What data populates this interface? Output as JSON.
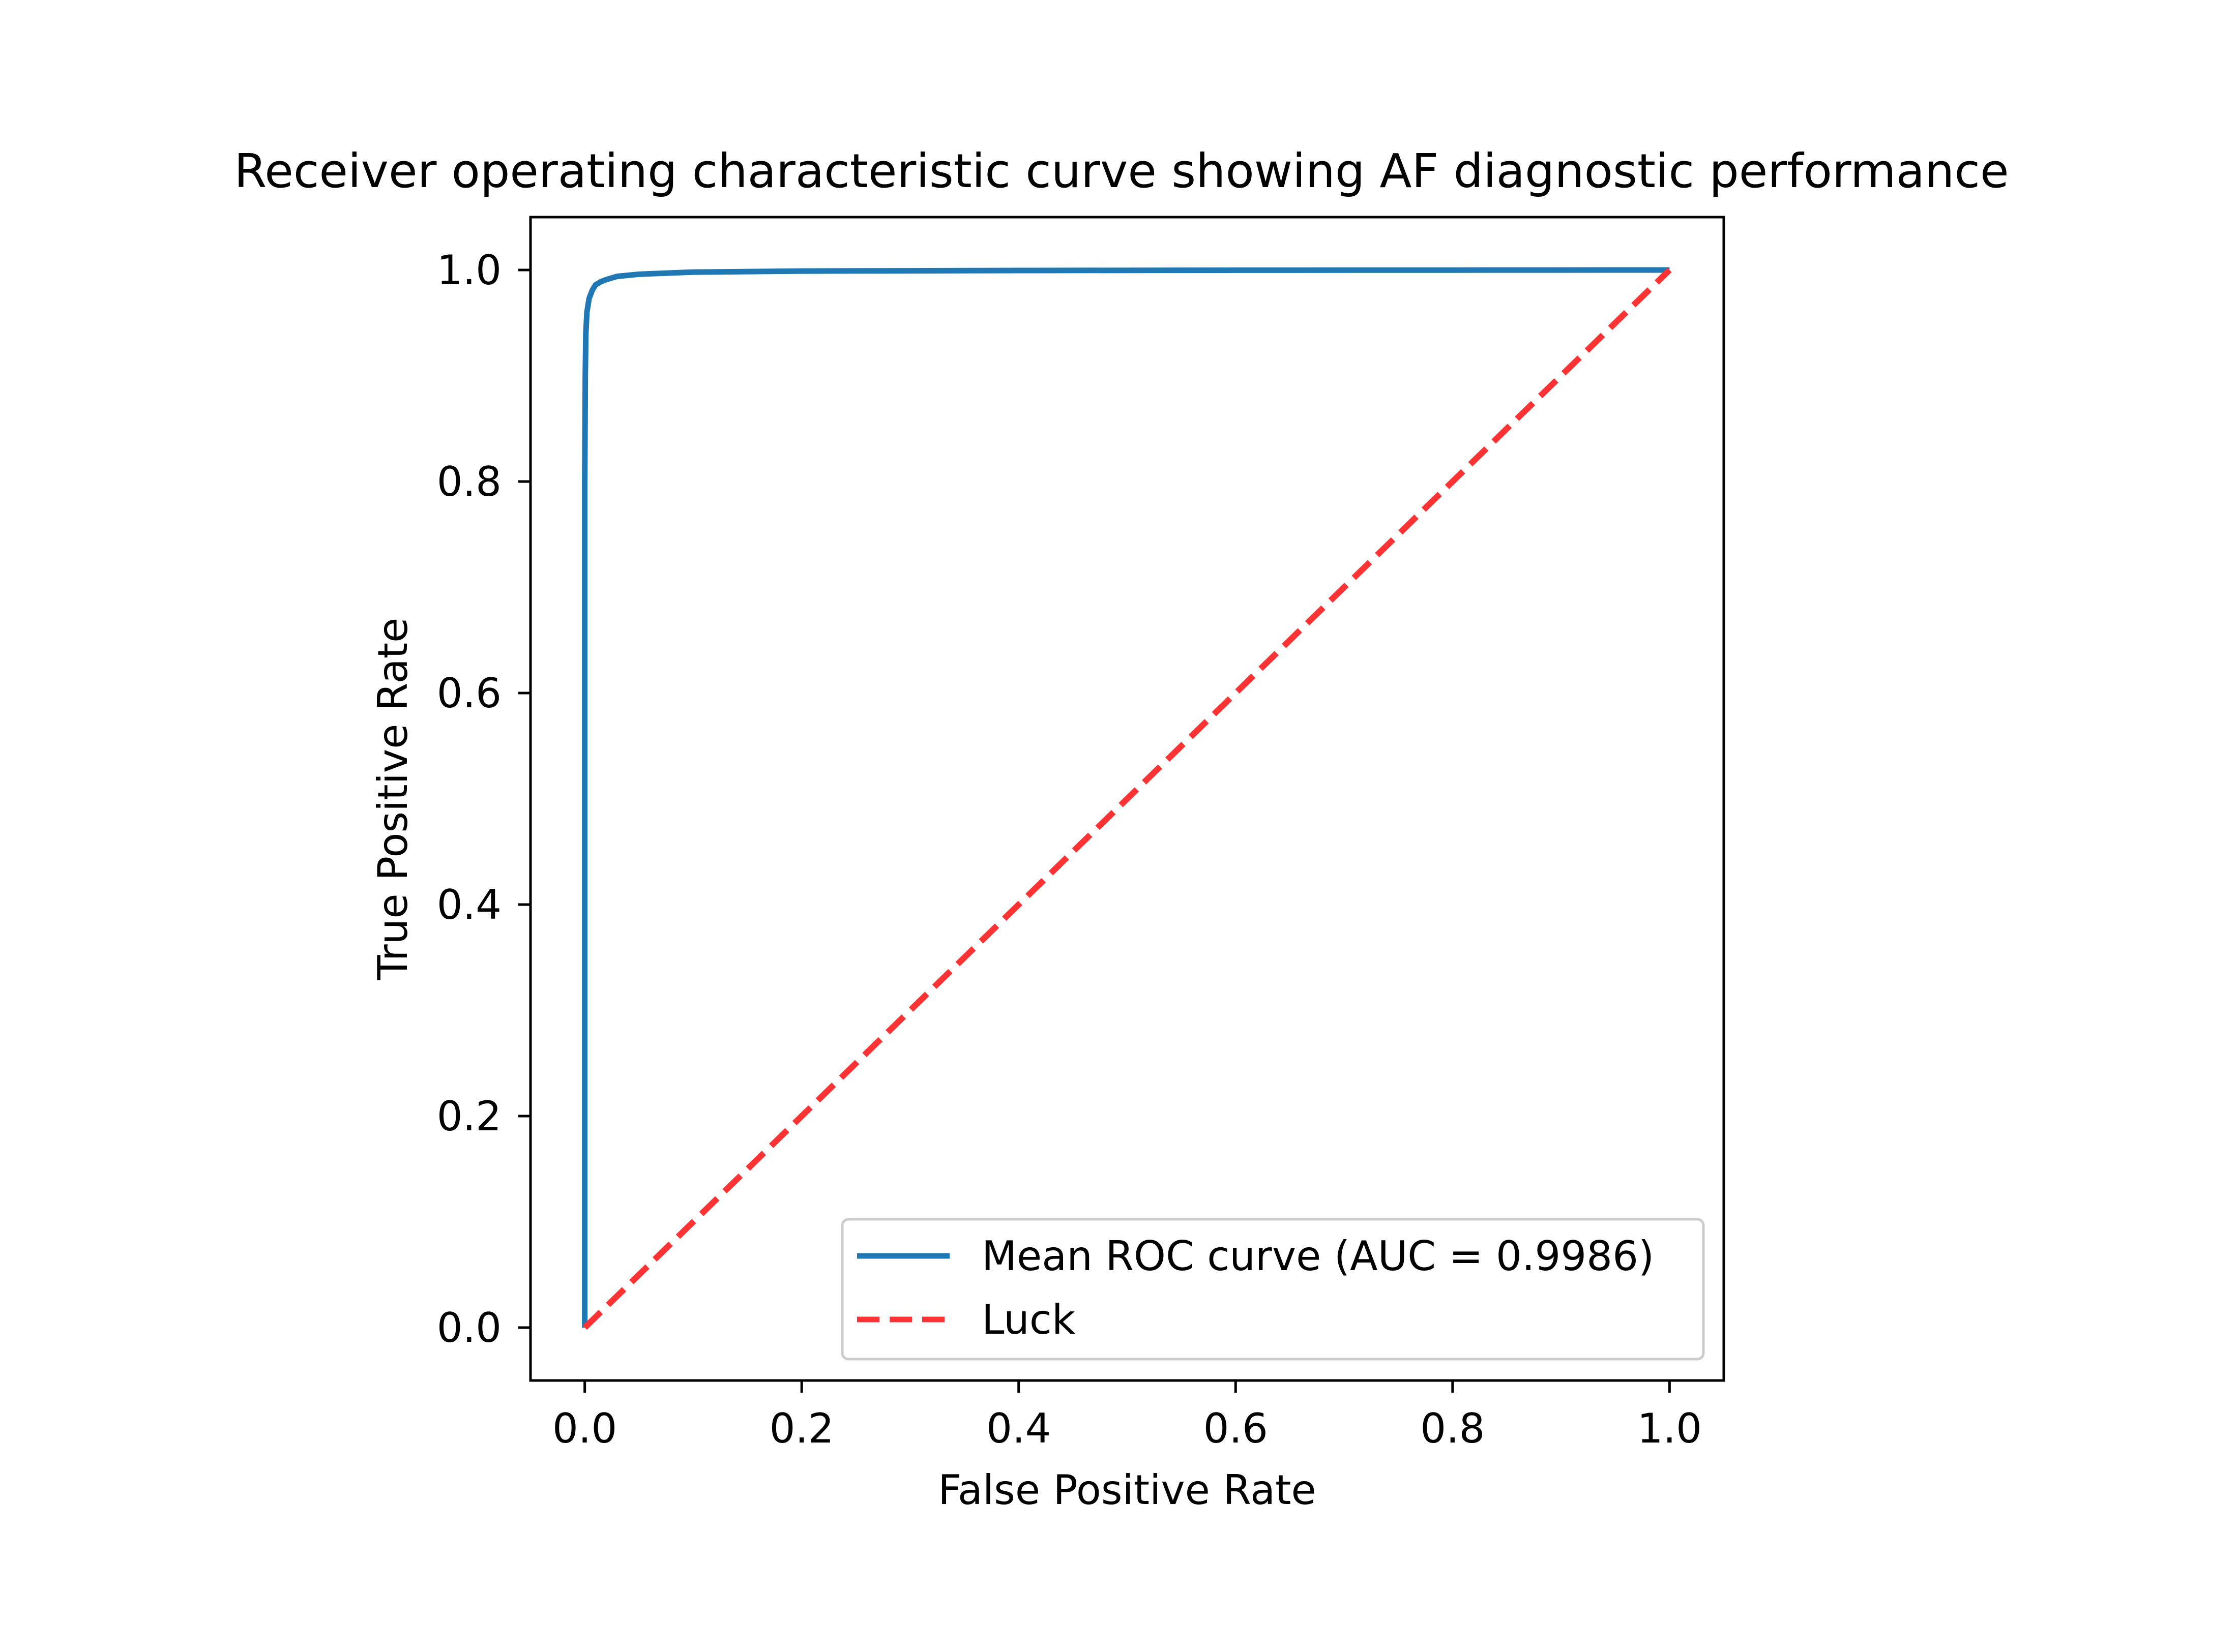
{
  "chart_data": {
    "type": "line",
    "title": "Receiver operating characteristic curve showing AF diagnostic performance",
    "xlabel": "False Positive Rate",
    "ylabel": "True Positive Rate",
    "xlim": [
      -0.05,
      1.05
    ],
    "ylim": [
      -0.05,
      1.05
    ],
    "xticks": [
      0.0,
      0.2,
      0.4,
      0.6,
      0.8,
      1.0
    ],
    "yticks": [
      0.0,
      0.2,
      0.4,
      0.6,
      0.8,
      1.0
    ],
    "xtick_labels": [
      "0.0",
      "0.2",
      "0.4",
      "0.6",
      "0.8",
      "1.0"
    ],
    "ytick_labels": [
      "0.0",
      "0.2",
      "0.4",
      "0.6",
      "0.8",
      "1.0"
    ],
    "grid": false,
    "legend_position": "lower-right",
    "series": [
      {
        "name": "Mean ROC curve (AUC = 0.9986)",
        "color": "#1f77b4",
        "style": "solid",
        "x": [
          0.0,
          0.0,
          0.0005,
          0.001,
          0.002,
          0.004,
          0.007,
          0.01,
          0.015,
          0.02,
          0.03,
          0.05,
          0.1,
          0.2,
          0.4,
          0.6,
          0.8,
          1.0
        ],
        "y": [
          0.0,
          0.8,
          0.9,
          0.94,
          0.96,
          0.973,
          0.981,
          0.986,
          0.989,
          0.991,
          0.994,
          0.996,
          0.998,
          0.999,
          0.9995,
          0.9998,
          0.9999,
          1.0
        ]
      },
      {
        "name": "Luck",
        "color": "#ff3333",
        "style": "dashed",
        "x": [
          0.0,
          1.0
        ],
        "y": [
          0.0,
          1.0
        ]
      }
    ]
  }
}
